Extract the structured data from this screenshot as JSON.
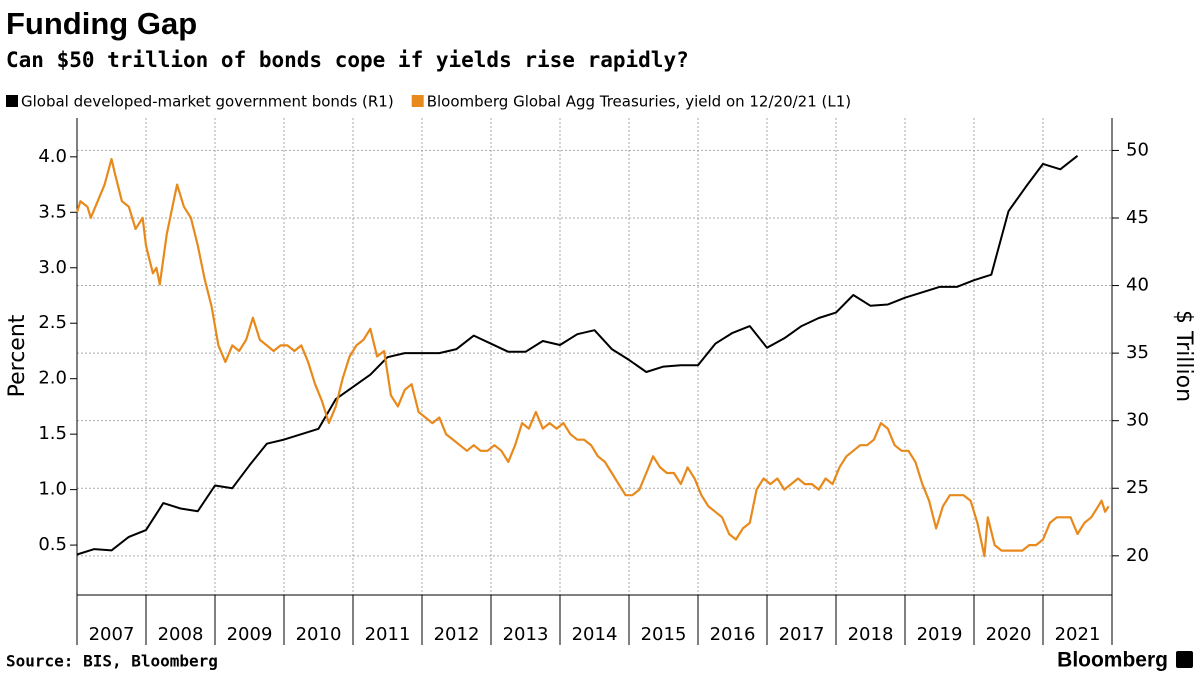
{
  "chart_data": {
    "type": "line",
    "title": "Funding Gap",
    "subtitle": "Can $50 trillion of bonds cope if yields rise rapidly?",
    "ylabel": "Percent",
    "y2label": "$ Trillion",
    "source": "Source: BIS, Bloomberg",
    "brand": "Bloomberg",
    "xlim": [
      2007,
      2022
    ],
    "xticks": [
      2007,
      2008,
      2009,
      2010,
      2011,
      2012,
      2013,
      2014,
      2015,
      2016,
      2017,
      2018,
      2019,
      2020,
      2021
    ],
    "ylim": [
      0.05,
      4.35
    ],
    "yticks": [
      {
        "value": 0.5,
        "label": "0.5"
      },
      {
        "value": 1.0,
        "label": "1.0"
      },
      {
        "value": 1.5,
        "label": "1.5"
      },
      {
        "value": 2.0,
        "label": "2.0"
      },
      {
        "value": 2.5,
        "label": "2.5"
      },
      {
        "value": 3.0,
        "label": "3.0"
      },
      {
        "value": 3.5,
        "label": "3.5"
      },
      {
        "value": 4.0,
        "label": "4.0"
      }
    ],
    "y2lim": [
      17.1,
      52.4
    ],
    "y2ticks": [
      20,
      25,
      30,
      35,
      40,
      45,
      50
    ],
    "grid": true,
    "series": [
      {
        "name": "Global developed-market government bonds (R1)",
        "color": "#000000",
        "axis": "y2",
        "x": [
          2007.0,
          2007.25,
          2007.5,
          2007.75,
          2008.0,
          2008.25,
          2008.5,
          2008.75,
          2009.0,
          2009.25,
          2009.5,
          2009.75,
          2010.0,
          2010.25,
          2010.5,
          2010.75,
          2011.0,
          2011.25,
          2011.5,
          2011.75,
          2012.0,
          2012.25,
          2012.5,
          2012.75,
          2013.0,
          2013.25,
          2013.5,
          2013.75,
          2014.0,
          2014.25,
          2014.5,
          2014.75,
          2015.0,
          2015.25,
          2015.5,
          2015.75,
          2016.0,
          2016.25,
          2016.5,
          2016.75,
          2017.0,
          2017.25,
          2017.5,
          2017.75,
          2018.0,
          2018.25,
          2018.5,
          2018.75,
          2019.0,
          2019.25,
          2019.5,
          2019.75,
          2020.0,
          2020.25,
          2020.5,
          2020.75,
          2021.0,
          2021.25,
          2021.5
        ],
        "values": [
          20.1,
          20.5,
          20.4,
          21.4,
          21.9,
          23.9,
          23.5,
          23.3,
          25.2,
          25.0,
          26.7,
          28.3,
          28.6,
          29.0,
          29.4,
          31.6,
          32.5,
          33.4,
          34.7,
          35.0,
          35.0,
          35.0,
          35.3,
          36.3,
          35.7,
          35.1,
          35.1,
          35.9,
          35.6,
          36.4,
          36.7,
          35.3,
          34.5,
          33.6,
          34.0,
          34.1,
          34.1,
          35.7,
          36.5,
          37.0,
          35.4,
          36.1,
          37.0,
          37.6,
          38.0,
          39.3,
          38.5,
          38.6,
          39.1,
          39.5,
          39.9,
          39.9,
          40.4,
          40.8,
          45.5,
          47.3,
          49.0,
          48.6,
          49.6
        ]
      },
      {
        "name": "Bloomberg Global Agg Treasuries, yield on 12/20/21 (L1)",
        "color": "#e8891c",
        "axis": "y",
        "x": [
          2007.0,
          2007.05,
          2007.15,
          2007.2,
          2007.3,
          2007.4,
          2007.5,
          2007.55,
          2007.65,
          2007.75,
          2007.85,
          2007.95,
          2008.0,
          2008.1,
          2008.15,
          2008.2,
          2008.3,
          2008.4,
          2008.45,
          2008.55,
          2008.65,
          2008.75,
          2008.85,
          2008.95,
          2009.05,
          2009.15,
          2009.25,
          2009.35,
          2009.45,
          2009.55,
          2009.65,
          2009.75,
          2009.85,
          2009.95,
          2010.05,
          2010.15,
          2010.25,
          2010.35,
          2010.45,
          2010.55,
          2010.65,
          2010.75,
          2010.85,
          2010.95,
          2011.05,
          2011.15,
          2011.25,
          2011.35,
          2011.45,
          2011.55,
          2011.65,
          2011.75,
          2011.85,
          2011.95,
          2012.05,
          2012.15,
          2012.25,
          2012.35,
          2012.45,
          2012.55,
          2012.65,
          2012.75,
          2012.85,
          2012.95,
          2013.05,
          2013.15,
          2013.25,
          2013.35,
          2013.45,
          2013.55,
          2013.65,
          2013.75,
          2013.85,
          2013.95,
          2014.05,
          2014.15,
          2014.25,
          2014.35,
          2014.45,
          2014.55,
          2014.65,
          2014.75,
          2014.85,
          2014.95,
          2015.05,
          2015.15,
          2015.25,
          2015.35,
          2015.45,
          2015.55,
          2015.65,
          2015.75,
          2015.85,
          2015.95,
          2016.05,
          2016.15,
          2016.25,
          2016.35,
          2016.45,
          2016.55,
          2016.65,
          2016.75,
          2016.85,
          2016.95,
          2017.05,
          2017.15,
          2017.25,
          2017.35,
          2017.45,
          2017.55,
          2017.65,
          2017.75,
          2017.85,
          2017.95,
          2018.05,
          2018.15,
          2018.25,
          2018.35,
          2018.45,
          2018.55,
          2018.65,
          2018.75,
          2018.85,
          2018.95,
          2019.05,
          2019.15,
          2019.25,
          2019.35,
          2019.45,
          2019.55,
          2019.65,
          2019.75,
          2019.85,
          2019.95,
          2020.05,
          2020.15,
          2020.2,
          2020.3,
          2020.4,
          2020.5,
          2020.6,
          2020.7,
          2020.8,
          2020.9,
          2021.0,
          2021.1,
          2021.2,
          2021.3,
          2021.4,
          2021.5,
          2021.6,
          2021.7,
          2021.8,
          2021.85,
          2021.9,
          2021.95
        ],
        "values": [
          3.5,
          3.6,
          3.55,
          3.45,
          3.6,
          3.75,
          3.98,
          3.85,
          3.6,
          3.55,
          3.35,
          3.45,
          3.2,
          2.95,
          3.0,
          2.85,
          3.3,
          3.6,
          3.75,
          3.55,
          3.45,
          3.2,
          2.9,
          2.65,
          2.3,
          2.15,
          2.3,
          2.25,
          2.35,
          2.55,
          2.35,
          2.3,
          2.25,
          2.3,
          2.3,
          2.25,
          2.3,
          2.15,
          1.95,
          1.8,
          1.6,
          1.75,
          2.0,
          2.2,
          2.3,
          2.35,
          2.45,
          2.2,
          2.25,
          1.85,
          1.75,
          1.9,
          1.95,
          1.7,
          1.65,
          1.6,
          1.65,
          1.5,
          1.45,
          1.4,
          1.35,
          1.4,
          1.35,
          1.35,
          1.4,
          1.35,
          1.25,
          1.4,
          1.6,
          1.55,
          1.7,
          1.55,
          1.6,
          1.55,
          1.6,
          1.5,
          1.45,
          1.45,
          1.4,
          1.3,
          1.25,
          1.15,
          1.05,
          0.95,
          0.95,
          1.0,
          1.15,
          1.3,
          1.2,
          1.15,
          1.15,
          1.05,
          1.2,
          1.1,
          0.95,
          0.85,
          0.8,
          0.75,
          0.6,
          0.55,
          0.65,
          0.7,
          1.0,
          1.1,
          1.05,
          1.1,
          1.0,
          1.05,
          1.1,
          1.05,
          1.05,
          1.0,
          1.1,
          1.05,
          1.2,
          1.3,
          1.35,
          1.4,
          1.4,
          1.45,
          1.6,
          1.55,
          1.4,
          1.35,
          1.35,
          1.25,
          1.05,
          0.9,
          0.65,
          0.85,
          0.95,
          0.95,
          0.95,
          0.9,
          0.7,
          0.4,
          0.75,
          0.5,
          0.45,
          0.45,
          0.45,
          0.45,
          0.5,
          0.5,
          0.55,
          0.7,
          0.75,
          0.75,
          0.75,
          0.6,
          0.7,
          0.75,
          0.85,
          0.9,
          0.8,
          0.85
        ]
      }
    ]
  }
}
